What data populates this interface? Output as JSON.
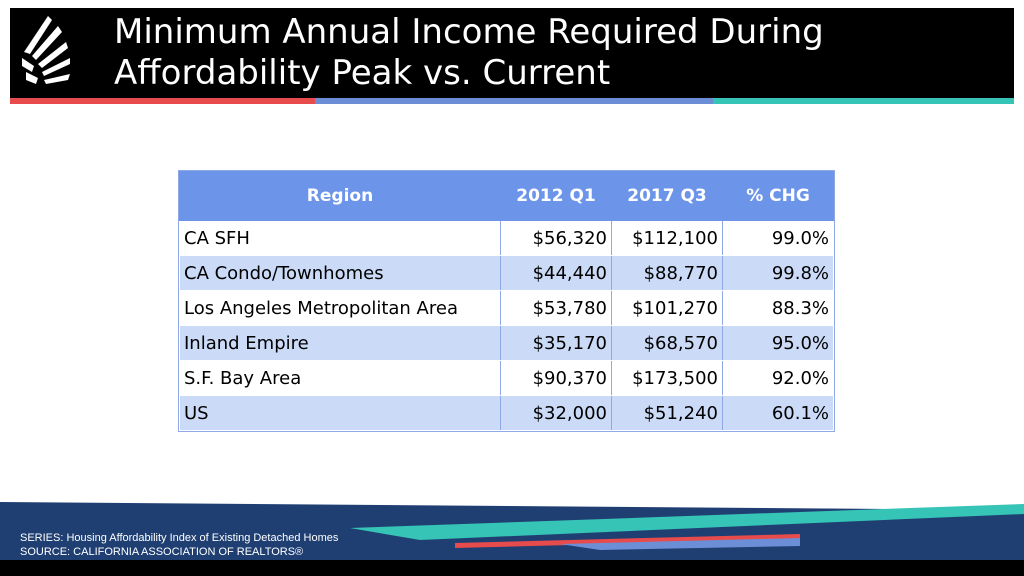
{
  "header": {
    "title_line1": "Minimum Annual Income Required  During",
    "title_line2": "Affordability Peak vs. Current"
  },
  "table": {
    "columns": [
      "Region",
      "2012 Q1",
      "2017 Q3",
      "% CHG"
    ],
    "rows": [
      [
        "CA SFH",
        "$56,320",
        "$112,100",
        "99.0%"
      ],
      [
        "CA Condo/Townhomes",
        "$44,440",
        "$88,770",
        "99.8%"
      ],
      [
        "Los Angeles Metropolitan Area",
        "$53,780",
        "$101,270",
        "88.3%"
      ],
      [
        "Inland Empire",
        "$35,170",
        "$68,570",
        "95.0%"
      ],
      [
        "S.F. Bay Area",
        "$90,370",
        "$173,500",
        "92.0%"
      ],
      [
        "US",
        "$32,000",
        "$51,240",
        "60.1%"
      ]
    ]
  },
  "footer": {
    "series": "SERIES: Housing Affordability Index of Existing Detached Homes",
    "source": "SOURCE:  CALIFORNIA ASSOCIATION OF REALTORS®"
  },
  "colors": {
    "header_bg": "#000000",
    "accent_red": "#e84b4b",
    "accent_blue": "#6c8ed6",
    "accent_teal": "#35c4b5",
    "table_header": "#6c95ea",
    "table_band": "#cbdaf6",
    "footer_navy": "#1f3f73"
  }
}
